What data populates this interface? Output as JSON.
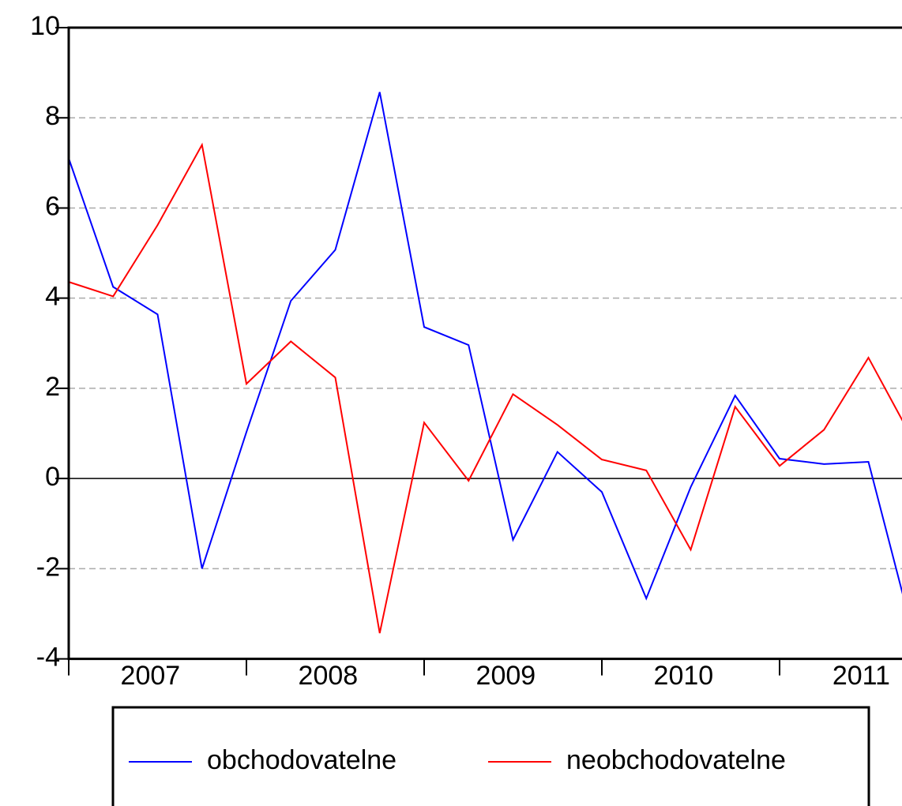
{
  "chart_data": {
    "type": "line",
    "categories": [
      "2007",
      null,
      null,
      null,
      "2008",
      null,
      null,
      null,
      "2009",
      null,
      null,
      null,
      "2010",
      null,
      null,
      null,
      "2011",
      null,
      null,
      null
    ],
    "series": [
      {
        "name": "obchodovatelne",
        "color": "#0000ff",
        "values": [
          7.1,
          4.25,
          3.64,
          -2.0,
          1.03,
          3.94,
          5.07,
          8.57,
          3.36,
          2.96,
          -1.36,
          0.59,
          -0.3,
          -2.66,
          -0.19,
          1.84,
          0.44,
          0.32,
          0.37,
          -3.43
        ]
      },
      {
        "name": "neobchodovatelne",
        "color": "#ff0000",
        "values": [
          4.36,
          4.04,
          5.62,
          7.4,
          2.1,
          3.04,
          2.24,
          -3.43,
          1.24,
          -0.05,
          1.87,
          1.19,
          0.42,
          0.18,
          -1.58,
          1.59,
          0.28,
          1.08,
          2.68,
          0.86
        ]
      }
    ],
    "ylim": [
      -4,
      10
    ],
    "yticks": [
      -4,
      -2,
      0,
      2,
      4,
      6,
      8,
      10
    ],
    "grid": true,
    "legend": "bottom"
  }
}
